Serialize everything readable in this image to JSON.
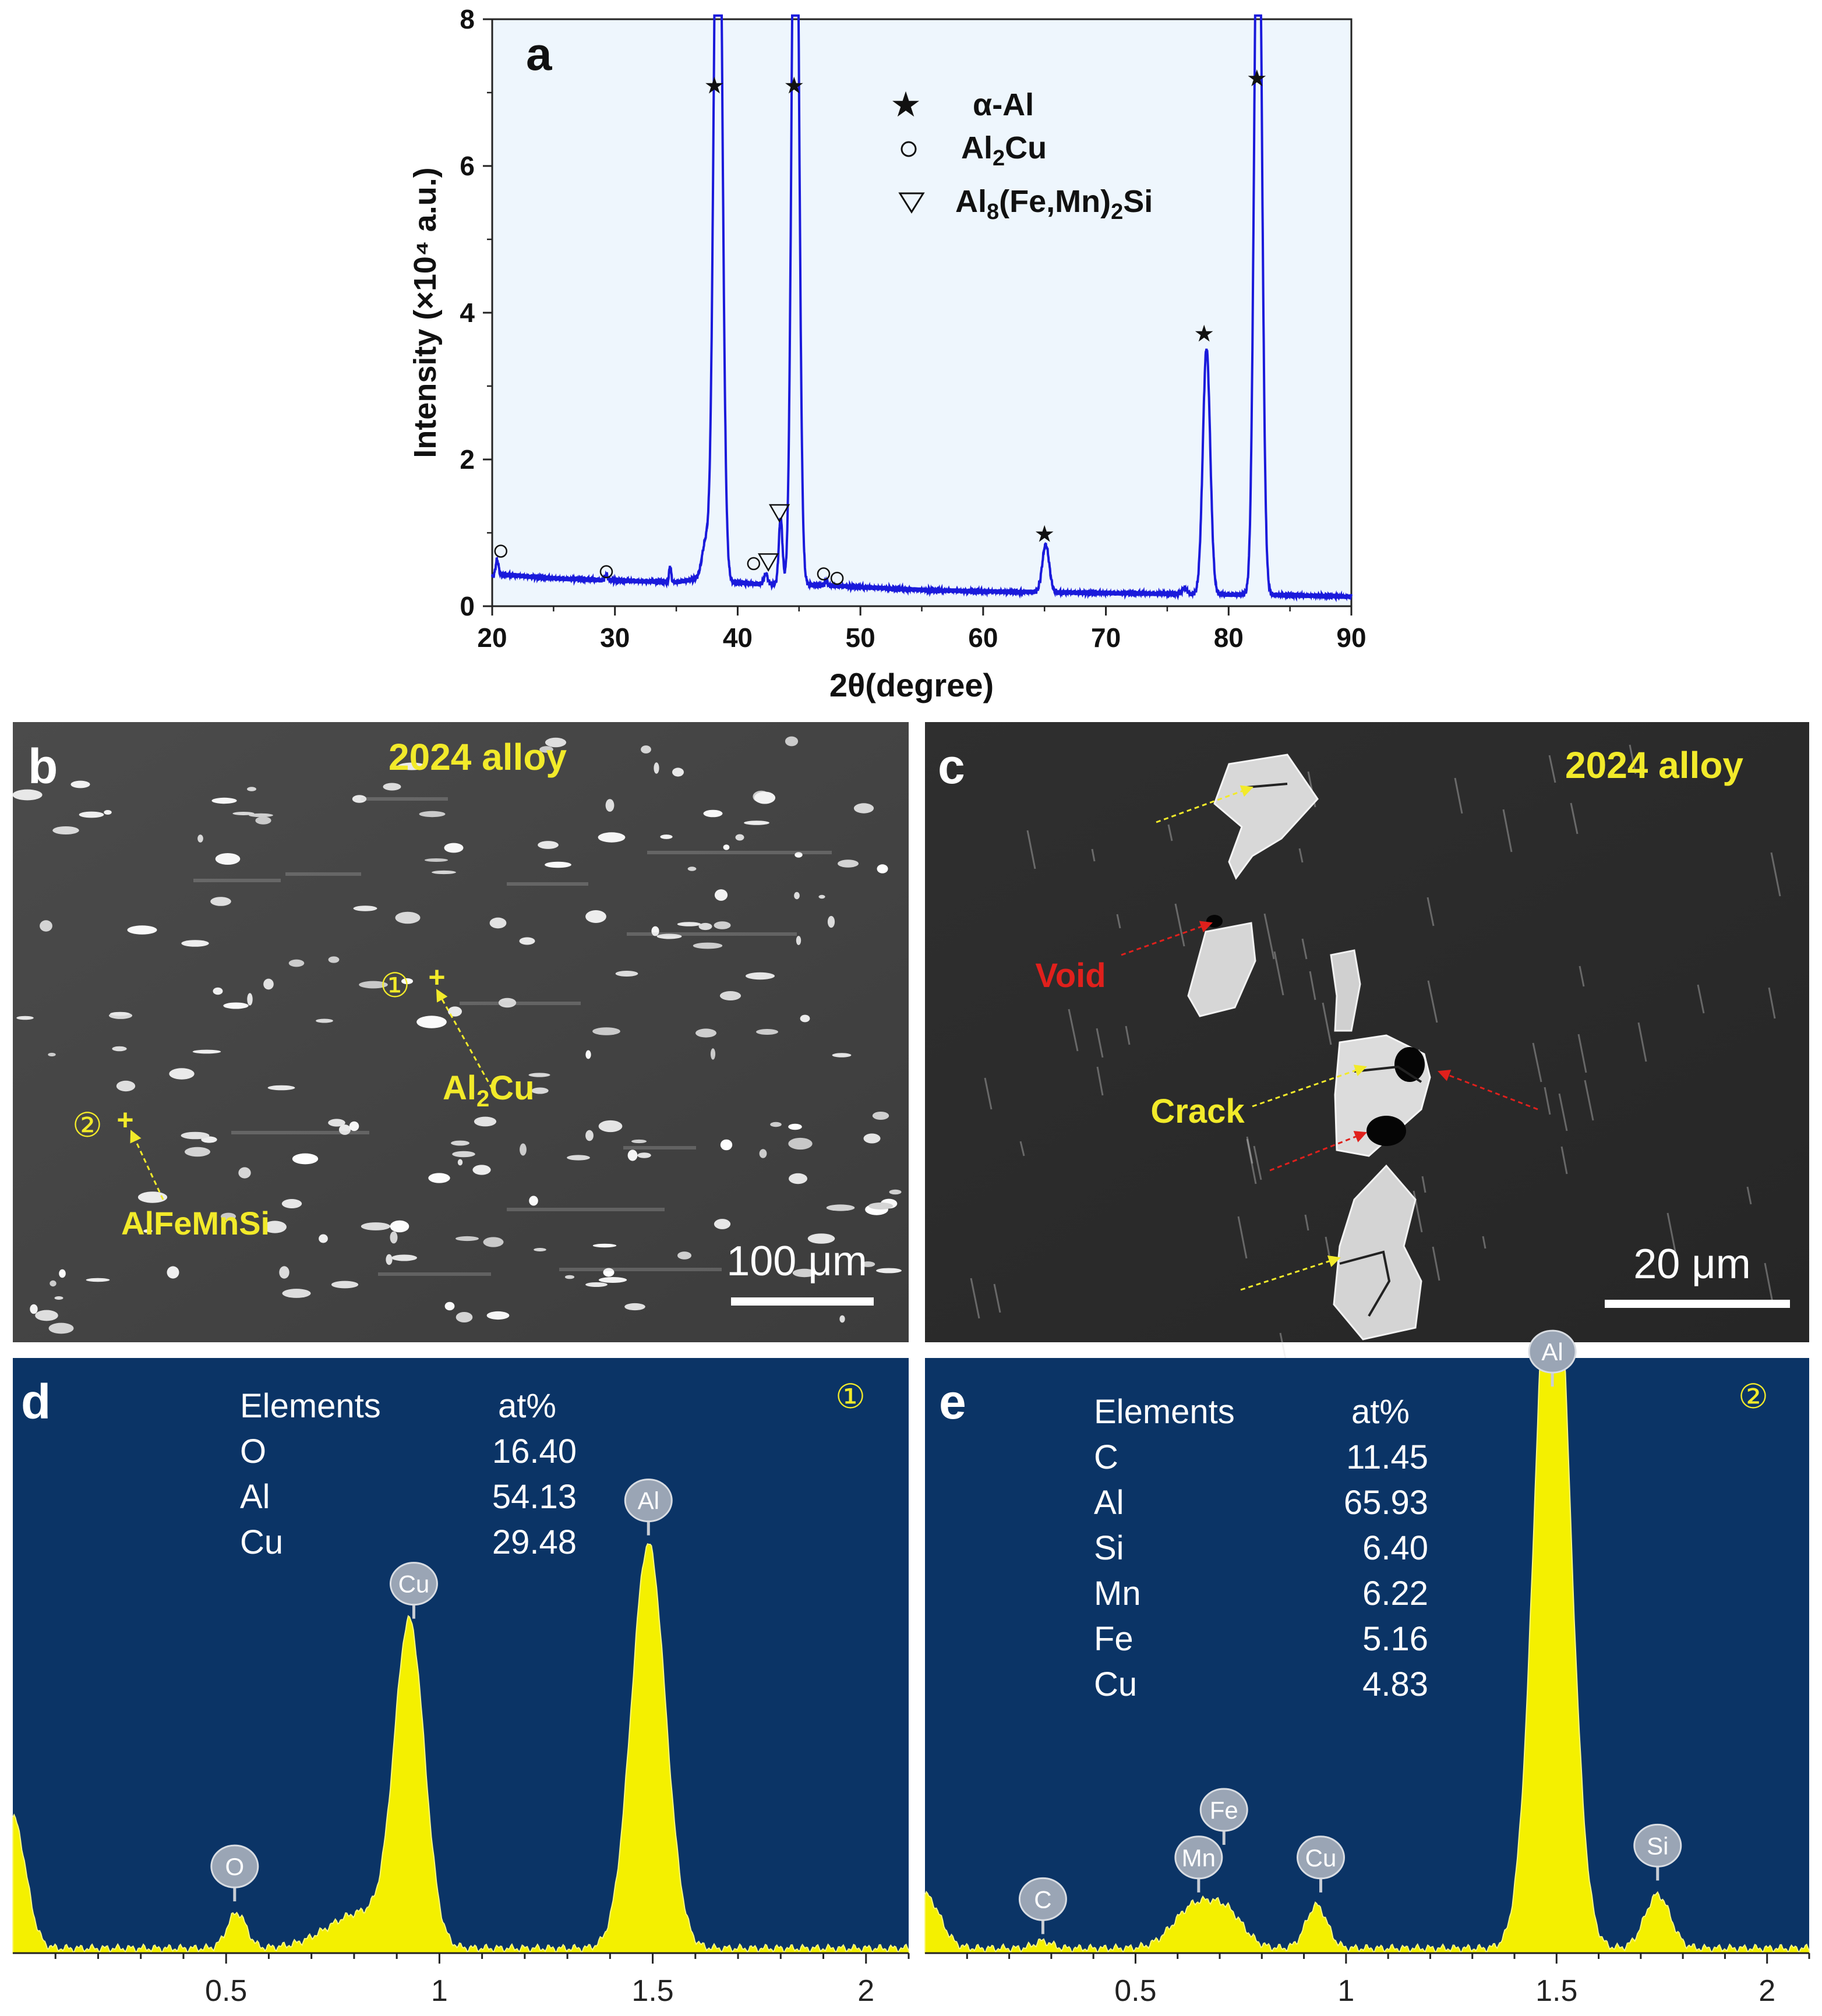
{
  "panels": {
    "a": {
      "letter": "a",
      "chart_data": {
        "type": "line",
        "xlabel": "2θ(degree)",
        "ylabel": "Intensity (×10⁴ a.u.)",
        "xlim": [
          20,
          90
        ],
        "ylim": [
          0,
          8
        ],
        "xticks": [
          "20",
          "30",
          "40",
          "50",
          "60",
          "70",
          "80",
          "90"
        ],
        "yticks": [
          "0",
          "2",
          "4",
          "6",
          "8"
        ],
        "background": "#eef6fd",
        "line_color": "#1a1adb",
        "baseline": [
          [
            20,
            0.4
          ],
          [
            21,
            0.43
          ],
          [
            25,
            0.38
          ],
          [
            30,
            0.35
          ],
          [
            35,
            0.33
          ],
          [
            37,
            0.38
          ],
          [
            40,
            0.32
          ],
          [
            42,
            0.3
          ],
          [
            45,
            0.3
          ],
          [
            50,
            0.26
          ],
          [
            55,
            0.22
          ],
          [
            60,
            0.2
          ],
          [
            70,
            0.18
          ],
          [
            80,
            0.16
          ],
          [
            85,
            0.15
          ],
          [
            90,
            0.13
          ]
        ],
        "peaks": [
          {
            "x": 20.4,
            "height": 0.22,
            "width": 0.12
          },
          {
            "x": 29.3,
            "height": 0.08,
            "width": 0.1
          },
          {
            "x": 34.5,
            "height": 0.22,
            "width": 0.08
          },
          {
            "x": 38.4,
            "height": 12.0,
            "width": 0.32
          },
          {
            "x": 37.4,
            "height": 0.5,
            "width": 0.3
          },
          {
            "x": 42.3,
            "height": 0.14,
            "width": 0.15
          },
          {
            "x": 43.5,
            "height": 0.9,
            "width": 0.15
          },
          {
            "x": 44.7,
            "height": 12.0,
            "width": 0.28
          },
          {
            "x": 47.2,
            "height": 0.05,
            "width": 0.12
          },
          {
            "x": 65.1,
            "height": 0.65,
            "width": 0.28
          },
          {
            "x": 78.2,
            "height": 3.35,
            "width": 0.3
          },
          {
            "x": 82.4,
            "height": 11.0,
            "width": 0.3
          },
          {
            "x": 76.4,
            "height": 0.08,
            "width": 0.2
          }
        ],
        "markers": [
          {
            "symbol": "star",
            "x": 38.1,
            "y": 7.1
          },
          {
            "symbol": "star",
            "x": 44.6,
            "y": 7.1
          },
          {
            "symbol": "star",
            "x": 65.0,
            "y": 0.99
          },
          {
            "symbol": "star",
            "x": 78.0,
            "y": 3.72
          },
          {
            "symbol": "star",
            "x": 82.3,
            "y": 7.2
          },
          {
            "symbol": "circle",
            "x": 20.7,
            "y": 0.75
          },
          {
            "symbol": "circle",
            "x": 29.3,
            "y": 0.47
          },
          {
            "symbol": "circle",
            "x": 41.3,
            "y": 0.58
          },
          {
            "symbol": "circle",
            "x": 47.0,
            "y": 0.44
          },
          {
            "symbol": "circle",
            "x": 48.1,
            "y": 0.38
          },
          {
            "symbol": "triangle",
            "x": 42.5,
            "y": 0.6
          },
          {
            "symbol": "triangle",
            "x": 43.4,
            "y": 1.27
          }
        ],
        "legend": [
          {
            "symbol": "star",
            "main": "α-Al"
          },
          {
            "symbol": "circle",
            "main": "Al2Cu"
          },
          {
            "symbol": "triangle",
            "main": "Al8(Fe,Mn)2Si"
          }
        ]
      }
    },
    "b": {
      "letter": "b",
      "title": "2024 alloy",
      "scale": "100 μm",
      "point1": "①",
      "point2": "②",
      "phase1": "Al2Cu",
      "phase2": "AlFeMnSi"
    },
    "c": {
      "letter": "c",
      "title": "2024 alloy",
      "scale": "20 μm",
      "void": "Void",
      "crack": "Crack"
    },
    "d": {
      "letter": "d",
      "point": "①",
      "header_element": "Elements",
      "header_value": "at%",
      "rows": [
        {
          "el": "O",
          "val": "16.40"
        },
        {
          "el": "Al",
          "val": "54.13"
        },
        {
          "el": "Cu",
          "val": "29.48"
        }
      ],
      "chart_data": {
        "type": "area",
        "xlim": [
          0.0,
          2.1
        ],
        "ylim": [
          0,
          1
        ],
        "xticks": [
          "0.5",
          "1",
          "1.5",
          "2"
        ],
        "background": "#0b3466",
        "fill_color": "#f4f000",
        "peaks": [
          {
            "x": 0.0,
            "height": 0.22,
            "width": 0.03
          },
          {
            "x": 0.525,
            "height": 0.06,
            "width": 0.022
          },
          {
            "x": 0.93,
            "height": 0.53,
            "width": 0.035
          },
          {
            "x": 0.82,
            "height": 0.06,
            "width": 0.08
          },
          {
            "x": 1.49,
            "height": 0.68,
            "width": 0.04
          }
        ],
        "labels": [
          {
            "text": "O",
            "x": 0.52,
            "peak_y": 0.085
          },
          {
            "text": "Cu",
            "x": 0.94,
            "peak_y": 0.56
          },
          {
            "text": "Al",
            "x": 1.49,
            "peak_y": 0.7
          }
        ]
      }
    },
    "e": {
      "letter": "e",
      "point": "②",
      "header_element": "Elements",
      "header_value": "at%",
      "rows": [
        {
          "el": "C",
          "val": "11.45"
        },
        {
          "el": "Al",
          "val": "65.93"
        },
        {
          "el": "Si",
          "val": "6.40"
        },
        {
          "el": "Mn",
          "val": "6.22"
        },
        {
          "el": "Fe",
          "val": "5.16"
        },
        {
          "el": "Cu",
          "val": "4.83"
        }
      ],
      "chart_data": {
        "type": "area",
        "xlim": [
          0.0,
          2.1
        ],
        "ylim": [
          0,
          1
        ],
        "xticks": [
          "0.5",
          "1",
          "1.5",
          "2"
        ],
        "background": "#0b3466",
        "fill_color": "#f4f000",
        "peaks": [
          {
            "x": 0.0,
            "height": 0.09,
            "width": 0.035
          },
          {
            "x": 0.28,
            "height": 0.012,
            "width": 0.02
          },
          {
            "x": 0.64,
            "height": 0.07,
            "width": 0.05
          },
          {
            "x": 0.72,
            "height": 0.05,
            "width": 0.04
          },
          {
            "x": 0.93,
            "height": 0.072,
            "width": 0.025
          },
          {
            "x": 1.49,
            "height": 1.3,
            "width": 0.04
          },
          {
            "x": 1.74,
            "height": 0.09,
            "width": 0.03
          }
        ],
        "labels": [
          {
            "text": "C",
            "x": 0.28,
            "peak_y": 0.03
          },
          {
            "text": "Mn",
            "x": 0.65,
            "peak_y": 0.1
          },
          {
            "text": "Fe",
            "x": 0.71,
            "peak_y": 0.18
          },
          {
            "text": "Cu",
            "x": 0.94,
            "peak_y": 0.1
          },
          {
            "text": "Al",
            "x": 1.49,
            "peak_y": 0.95
          },
          {
            "text": "Si",
            "x": 1.74,
            "peak_y": 0.12
          }
        ]
      }
    }
  }
}
